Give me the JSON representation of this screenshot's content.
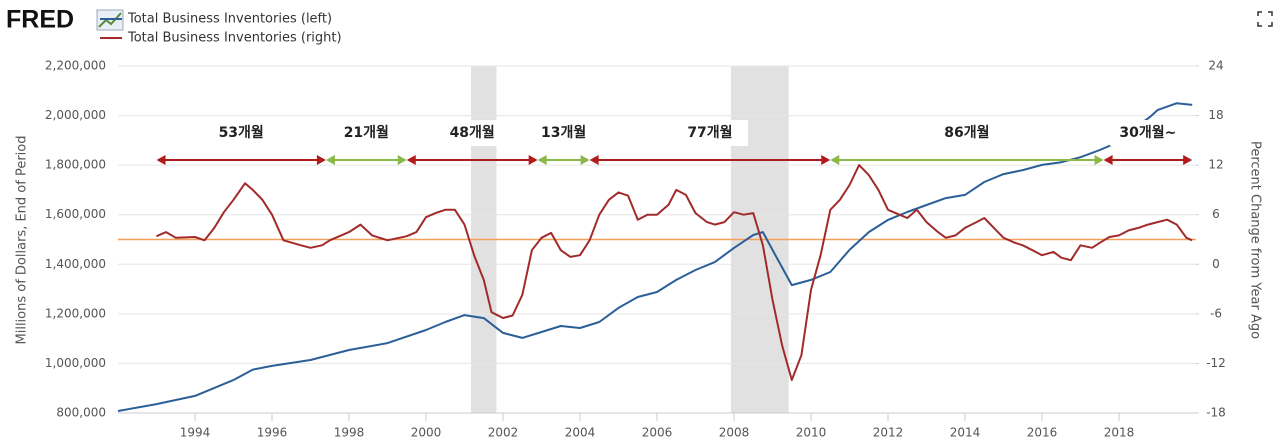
{
  "logo": "FRED",
  "chart_data": {
    "type": "line",
    "xlim": [
      1992,
      2020
    ],
    "xticks": [
      1994,
      1996,
      1998,
      2000,
      2002,
      2004,
      2006,
      2008,
      2010,
      2012,
      2014,
      2016,
      2018
    ],
    "ylim": [
      800000,
      2200000
    ],
    "yticks": [
      {
        "value": 800000,
        "label": "800,000"
      },
      {
        "value": 1000000,
        "label": "1,000,000"
      },
      {
        "value": 1200000,
        "label": "1,200,000"
      },
      {
        "value": 1400000,
        "label": "1,400,000"
      },
      {
        "value": 1600000,
        "label": "1,600,000"
      },
      {
        "value": 1800000,
        "label": "1,800,000"
      },
      {
        "value": 2000000,
        "label": "2,000,000"
      },
      {
        "value": 2200000,
        "label": "2,200,000"
      }
    ],
    "y2lim": [
      -18,
      24
    ],
    "y2ticks": [
      -18,
      -12,
      -6,
      0,
      6,
      12,
      18,
      24
    ],
    "ylabel": "Millions of Dollars, End of Period",
    "y2label": "Percent Change from Year Ago",
    "grid": true,
    "recessions": [
      [
        2001.17,
        2001.83
      ],
      [
        2007.92,
        2009.42
      ]
    ],
    "reference_line": {
      "value": 3,
      "axis": "y2",
      "color": "#f5a05a"
    },
    "series": [
      {
        "name": "Total Business Inventories (left)",
        "color": "#2c5f98",
        "axis": "y",
        "x": [
          1992.0,
          1993.0,
          1994.0,
          1995.0,
          1995.5,
          1996.0,
          1997.0,
          1998.0,
          1999.0,
          2000.0,
          2000.5,
          2001.0,
          2001.5,
          2002.0,
          2002.5,
          2003.0,
          2003.5,
          2004.0,
          2004.5,
          2005.0,
          2005.5,
          2006.0,
          2006.5,
          2007.0,
          2007.5,
          2008.0,
          2008.5,
          2008.75,
          2009.0,
          2009.5,
          2010.0,
          2010.5,
          2011.0,
          2011.5,
          2012.0,
          2012.5,
          2013.0,
          2013.5,
          2014.0,
          2014.5,
          2015.0,
          2015.5,
          2016.0,
          2016.5,
          2017.0,
          2017.5,
          2017.8,
          2018.8,
          2019.0,
          2019.5,
          2019.9
        ],
        "values": [
          808000,
          836000,
          869000,
          933000,
          975000,
          990000,
          1014000,
          1054000,
          1082000,
          1135000,
          1167000,
          1195000,
          1183000,
          1123000,
          1103000,
          1127000,
          1151000,
          1143000,
          1167000,
          1224000,
          1268000,
          1288000,
          1337000,
          1377000,
          1409000,
          1466000,
          1518000,
          1530000,
          1458000,
          1316000,
          1337000,
          1369000,
          1458000,
          1530000,
          1579000,
          1611000,
          1639000,
          1667000,
          1680000,
          1732000,
          1764000,
          1780000,
          1801000,
          1812000,
          1832000,
          1861000,
          1881000,
          1994000,
          2022000,
          2050000,
          2043000
        ]
      },
      {
        "name": "Total Business Inventories (right)",
        "color": "#a12b2b",
        "axis": "y2",
        "x": [
          1993.0,
          1993.25,
          1993.5,
          1994.0,
          1994.25,
          1994.5,
          1994.75,
          1995.0,
          1995.3,
          1995.5,
          1995.75,
          1996.0,
          1996.3,
          1996.75,
          1997.0,
          1997.3,
          1997.5,
          1998.0,
          1998.3,
          1998.6,
          1999.0,
          1999.5,
          1999.75,
          2000.0,
          2000.25,
          2000.5,
          2000.75,
          2001.0,
          2001.25,
          2001.5,
          2001.7,
          2002.0,
          2002.25,
          2002.5,
          2002.75,
          2003.0,
          2003.25,
          2003.5,
          2003.75,
          2004.0,
          2004.25,
          2004.5,
          2004.75,
          2005.0,
          2005.25,
          2005.5,
          2005.75,
          2006.0,
          2006.3,
          2006.5,
          2006.75,
          2007.0,
          2007.3,
          2007.5,
          2007.75,
          2008.0,
          2008.25,
          2008.5,
          2008.75,
          2009.0,
          2009.25,
          2009.5,
          2009.75,
          2010.0,
          2010.25,
          2010.5,
          2010.75,
          2011.0,
          2011.25,
          2011.5,
          2011.75,
          2012.0,
          2012.3,
          2012.5,
          2012.75,
          2013.0,
          2013.3,
          2013.5,
          2013.75,
          2014.0,
          2014.3,
          2014.5,
          2014.75,
          2015.0,
          2015.3,
          2015.5,
          2015.75,
          2016.0,
          2016.3,
          2016.5,
          2016.75,
          2017.0,
          2017.3,
          2017.5,
          2017.75,
          2018.0,
          2018.25,
          2018.5,
          2018.75,
          2019.0,
          2019.25,
          2019.5,
          2019.75,
          2019.9
        ],
        "values": [
          3.4,
          3.9,
          3.2,
          3.3,
          2.9,
          4.4,
          6.3,
          7.8,
          9.8,
          9.0,
          7.8,
          6.0,
          2.9,
          2.3,
          2.0,
          2.3,
          2.9,
          3.9,
          4.8,
          3.5,
          2.9,
          3.4,
          3.9,
          5.7,
          6.2,
          6.6,
          6.6,
          4.8,
          1.1,
          -1.9,
          -5.8,
          -6.5,
          -6.2,
          -3.7,
          1.7,
          3.2,
          3.8,
          1.7,
          0.9,
          1.1,
          2.9,
          6.0,
          7.8,
          8.7,
          8.3,
          5.4,
          6.0,
          6.0,
          7.2,
          9.0,
          8.4,
          6.2,
          5.1,
          4.8,
          5.1,
          6.3,
          6.0,
          6.2,
          2.3,
          -4.3,
          -9.8,
          -14.0,
          -11.0,
          -3.1,
          1.1,
          6.6,
          7.8,
          9.6,
          12.0,
          10.8,
          9.0,
          6.6,
          6.0,
          5.6,
          6.6,
          5.1,
          3.9,
          3.2,
          3.5,
          4.4,
          5.1,
          5.6,
          4.4,
          3.2,
          2.6,
          2.3,
          1.7,
          1.1,
          1.5,
          0.8,
          0.5,
          2.3,
          2.0,
          2.6,
          3.3,
          3.5,
          4.1,
          4.4,
          4.8,
          5.1,
          5.4,
          4.8,
          3.2,
          2.9
        ]
      }
    ],
    "annotations": [
      {
        "label": "53개월",
        "x": [
          1993.0,
          1997.4
        ],
        "color": "#b01c1c"
      },
      {
        "label": "21개월",
        "x": [
          1997.4,
          1999.5
        ],
        "color": "#8bb84a"
      },
      {
        "label": "48개월",
        "x": [
          1999.5,
          2002.9
        ],
        "color": "#b01c1c"
      },
      {
        "label": "13개월",
        "x": [
          2002.9,
          2004.25
        ],
        "color": "#8bb84a"
      },
      {
        "label": "77개월",
        "x": [
          2004.25,
          2010.5
        ],
        "color": "#b01c1c"
      },
      {
        "label": "86개월",
        "x": [
          2010.5,
          2017.6
        ],
        "color": "#8bb84a"
      },
      {
        "label": "30개월~",
        "x": [
          2017.6,
          2019.9
        ],
        "color": "#b01c1c"
      }
    ]
  }
}
